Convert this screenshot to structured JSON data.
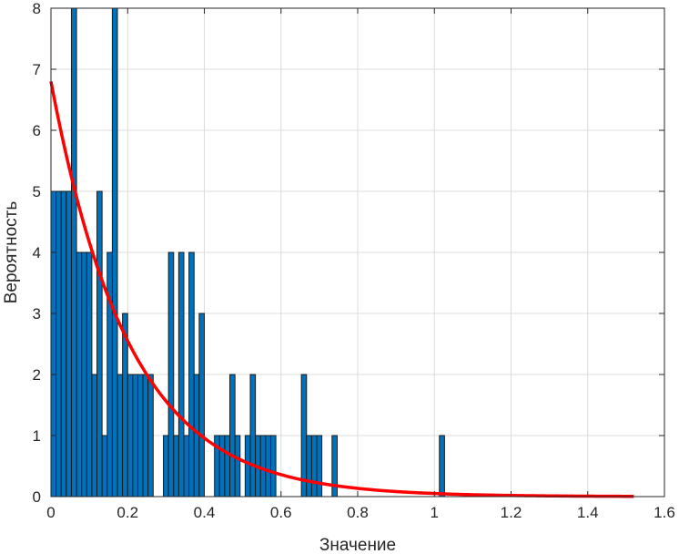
{
  "chart_data": {
    "type": "bar",
    "xlabel": "Значение",
    "ylabel": "Вероятность",
    "xlim": [
      0,
      1.6
    ],
    "ylim": [
      0,
      8
    ],
    "xticks": [
      0,
      0.2,
      0.4,
      0.6,
      0.8,
      1,
      1.2,
      1.4,
      1.6
    ],
    "xtick_labels": [
      "0",
      "0.2",
      "0.4",
      "0.6",
      "0.8",
      "1",
      "1.2",
      "1.4",
      "1.6"
    ],
    "yticks": [
      0,
      1,
      2,
      3,
      4,
      5,
      6,
      7,
      8
    ],
    "ytick_labels": [
      "0",
      "1",
      "2",
      "3",
      "4",
      "5",
      "6",
      "7",
      "8"
    ],
    "grid": true,
    "bin_start": 0,
    "bin_width": 0.01333,
    "bin_heights": [
      5,
      5,
      5,
      5,
      8,
      4,
      4,
      4,
      2,
      5,
      1,
      4,
      8,
      2,
      3,
      2,
      2,
      2,
      2,
      2,
      0,
      0,
      1,
      4,
      1,
      4,
      1,
      4,
      2,
      3,
      0,
      0,
      1,
      1,
      1,
      2,
      1,
      0,
      1,
      2,
      1,
      1,
      1,
      1,
      0,
      0,
      0,
      0,
      0,
      2,
      1,
      1,
      1,
      0,
      0,
      1,
      0,
      0,
      0,
      0,
      0,
      0,
      0,
      0,
      0,
      0,
      0,
      0,
      0,
      0,
      0,
      0,
      0,
      0,
      0,
      0,
      1
    ],
    "bar_color": "#0072BD",
    "curve": {
      "type": "exponential_pdf",
      "amplitude": 6.8,
      "rate": 4.9,
      "x_start": 0,
      "x_end": 1.52,
      "color": "#FF0000"
    }
  }
}
